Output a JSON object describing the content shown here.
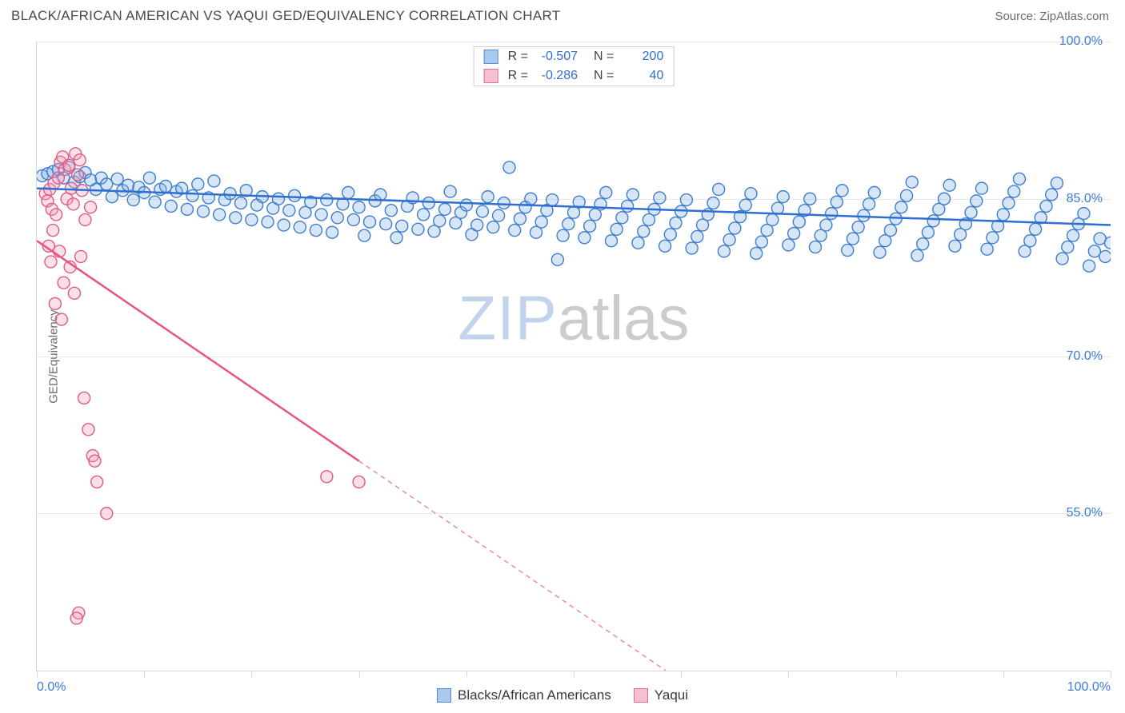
{
  "header": {
    "title": "BLACK/AFRICAN AMERICAN VS YAQUI GED/EQUIVALENCY CORRELATION CHART",
    "source": "Source: ZipAtlas.com"
  },
  "watermark": {
    "part1": "ZIP",
    "part2": "atlas"
  },
  "chart": {
    "type": "scatter",
    "background_color": "#ffffff",
    "border_color": "#d6d6d6",
    "grid_color": "#e8e8e8",
    "ylabel": "GED/Equivalency",
    "ylabel_color": "#6b6b6b",
    "label_fontsize": 15,
    "xlim": [
      0,
      100
    ],
    "ylim": [
      40,
      100
    ],
    "x_start_label": "0.0%",
    "x_end_label": "100.0%",
    "x_tick_positions": [
      0,
      10,
      20,
      30,
      40,
      50,
      60,
      70,
      80,
      90,
      100
    ],
    "y_ticks": [
      {
        "v": 100.0,
        "label": "100.0%"
      },
      {
        "v": 85.0,
        "label": "85.0%"
      },
      {
        "v": 70.0,
        "label": "70.0%"
      },
      {
        "v": 55.0,
        "label": "55.0%"
      }
    ],
    "tick_label_color": "#3b7bd6",
    "tick_fontsize": 16,
    "marker_radius": 7.5,
    "marker_fill_opacity": 0.32,
    "marker_stroke_width": 1.4,
    "trend_line_width": 2.5,
    "trend_dash_pattern": "6,5"
  },
  "legend_top": {
    "r_label": "R =",
    "n_label": "N =",
    "rows": [
      {
        "swatch_fill": "#a9c9ee",
        "swatch_border": "#4f8bd6",
        "r": "-0.507",
        "n": "200"
      },
      {
        "swatch_fill": "#f6c0cf",
        "swatch_border": "#e76a93",
        "r": "-0.286",
        "n": "40"
      }
    ]
  },
  "legend_bottom": {
    "items": [
      {
        "swatch_fill": "#a9c9ee",
        "swatch_border": "#4f8bd6",
        "label": "Blacks/African Americans"
      },
      {
        "swatch_fill": "#f6c0cf",
        "swatch_border": "#e76a93",
        "label": "Yaqui"
      }
    ]
  },
  "series": [
    {
      "name": "Blacks/African Americans",
      "marker_fill": "#7fb0e6",
      "marker_stroke": "#3f7dce",
      "trend_color": "#2f6fd0",
      "trend_y_start": 86.0,
      "trend_y_end": 82.5,
      "trend_solid_until_x": 100,
      "points": [
        [
          0.5,
          87.2
        ],
        [
          1,
          87.4
        ],
        [
          1.5,
          87.6
        ],
        [
          2,
          87.8
        ],
        [
          2.5,
          87.0
        ],
        [
          3,
          88.0
        ],
        [
          3.5,
          86.6
        ],
        [
          4,
          87.1
        ],
        [
          4.5,
          87.5
        ],
        [
          5,
          86.8
        ],
        [
          5.5,
          85.9
        ],
        [
          6,
          87.0
        ],
        [
          6.5,
          86.4
        ],
        [
          7,
          85.2
        ],
        [
          7.5,
          86.9
        ],
        [
          8,
          85.8
        ],
        [
          8.5,
          86.3
        ],
        [
          9,
          84.9
        ],
        [
          9.5,
          86.1
        ],
        [
          10,
          85.6
        ],
        [
          10.5,
          87.0
        ],
        [
          11,
          84.7
        ],
        [
          11.5,
          85.9
        ],
        [
          12,
          86.2
        ],
        [
          12.5,
          84.3
        ],
        [
          13,
          85.7
        ],
        [
          13.5,
          86.0
        ],
        [
          14,
          84.0
        ],
        [
          14.5,
          85.3
        ],
        [
          15,
          86.4
        ],
        [
          15.5,
          83.8
        ],
        [
          16,
          85.1
        ],
        [
          16.5,
          86.7
        ],
        [
          17,
          83.5
        ],
        [
          17.5,
          84.9
        ],
        [
          18,
          85.5
        ],
        [
          18.5,
          83.2
        ],
        [
          19,
          84.6
        ],
        [
          19.5,
          85.8
        ],
        [
          20,
          83.0
        ],
        [
          20.5,
          84.4
        ],
        [
          21,
          85.2
        ],
        [
          21.5,
          82.8
        ],
        [
          22,
          84.1
        ],
        [
          22.5,
          85.0
        ],
        [
          23,
          82.5
        ],
        [
          23.5,
          83.9
        ],
        [
          24,
          85.3
        ],
        [
          24.5,
          82.3
        ],
        [
          25,
          83.7
        ],
        [
          25.5,
          84.7
        ],
        [
          26,
          82.0
        ],
        [
          26.5,
          83.5
        ],
        [
          27,
          84.9
        ],
        [
          27.5,
          81.8
        ],
        [
          28,
          83.2
        ],
        [
          28.5,
          84.5
        ],
        [
          29,
          85.6
        ],
        [
          29.5,
          83.0
        ],
        [
          30,
          84.2
        ],
        [
          30.5,
          81.5
        ],
        [
          31,
          82.8
        ],
        [
          31.5,
          84.8
        ],
        [
          32,
          85.4
        ],
        [
          32.5,
          82.6
        ],
        [
          33,
          83.9
        ],
        [
          33.5,
          81.3
        ],
        [
          34,
          82.4
        ],
        [
          34.5,
          84.3
        ],
        [
          35,
          85.1
        ],
        [
          35.5,
          82.1
        ],
        [
          36,
          83.5
        ],
        [
          36.5,
          84.6
        ],
        [
          37,
          81.9
        ],
        [
          37.5,
          82.9
        ],
        [
          38,
          84.0
        ],
        [
          38.5,
          85.7
        ],
        [
          39,
          82.7
        ],
        [
          39.5,
          83.7
        ],
        [
          40,
          84.4
        ],
        [
          40.5,
          81.6
        ],
        [
          41,
          82.5
        ],
        [
          41.5,
          83.8
        ],
        [
          42,
          85.2
        ],
        [
          42.5,
          82.3
        ],
        [
          43,
          83.4
        ],
        [
          43.5,
          84.6
        ],
        [
          44,
          88.0
        ],
        [
          44.5,
          82.0
        ],
        [
          45,
          83.1
        ],
        [
          45.5,
          84.2
        ],
        [
          46,
          85.0
        ],
        [
          46.5,
          81.8
        ],
        [
          47,
          82.8
        ],
        [
          47.5,
          83.9
        ],
        [
          48,
          84.9
        ],
        [
          48.5,
          79.2
        ],
        [
          49,
          81.5
        ],
        [
          49.5,
          82.6
        ],
        [
          50,
          83.7
        ],
        [
          50.5,
          84.7
        ],
        [
          51,
          81.3
        ],
        [
          51.5,
          82.4
        ],
        [
          52,
          83.5
        ],
        [
          52.5,
          84.5
        ],
        [
          53,
          85.6
        ],
        [
          53.5,
          81.0
        ],
        [
          54,
          82.1
        ],
        [
          54.5,
          83.2
        ],
        [
          55,
          84.3
        ],
        [
          55.5,
          85.4
        ],
        [
          56,
          80.8
        ],
        [
          56.5,
          81.9
        ],
        [
          57,
          83.0
        ],
        [
          57.5,
          84.0
        ],
        [
          58,
          85.1
        ],
        [
          58.5,
          80.5
        ],
        [
          59,
          81.6
        ],
        [
          59.5,
          82.7
        ],
        [
          60,
          83.8
        ],
        [
          60.5,
          84.9
        ],
        [
          61,
          80.3
        ],
        [
          61.5,
          81.4
        ],
        [
          62,
          82.5
        ],
        [
          62.5,
          83.5
        ],
        [
          63,
          84.6
        ],
        [
          63.5,
          85.9
        ],
        [
          64,
          80.0
        ],
        [
          64.5,
          81.1
        ],
        [
          65,
          82.2
        ],
        [
          65.5,
          83.3
        ],
        [
          66,
          84.4
        ],
        [
          66.5,
          85.5
        ],
        [
          67,
          79.8
        ],
        [
          67.5,
          80.9
        ],
        [
          68,
          82.0
        ],
        [
          68.5,
          83.0
        ],
        [
          69,
          84.1
        ],
        [
          69.5,
          85.2
        ],
        [
          70,
          80.6
        ],
        [
          70.5,
          81.7
        ],
        [
          71,
          82.8
        ],
        [
          71.5,
          83.9
        ],
        [
          72,
          85.0
        ],
        [
          72.5,
          80.4
        ],
        [
          73,
          81.5
        ],
        [
          73.5,
          82.5
        ],
        [
          74,
          83.6
        ],
        [
          74.5,
          84.7
        ],
        [
          75,
          85.8
        ],
        [
          75.5,
          80.1
        ],
        [
          76,
          81.2
        ],
        [
          76.5,
          82.3
        ],
        [
          77,
          83.4
        ],
        [
          77.5,
          84.5
        ],
        [
          78,
          85.6
        ],
        [
          78.5,
          79.9
        ],
        [
          79,
          81.0
        ],
        [
          79.5,
          82.0
        ],
        [
          80,
          83.1
        ],
        [
          80.5,
          84.2
        ],
        [
          81,
          85.3
        ],
        [
          81.5,
          86.6
        ],
        [
          82,
          79.6
        ],
        [
          82.5,
          80.7
        ],
        [
          83,
          81.8
        ],
        [
          83.5,
          82.9
        ],
        [
          84,
          84.0
        ],
        [
          84.5,
          85.0
        ],
        [
          85,
          86.3
        ],
        [
          85.5,
          80.5
        ],
        [
          86,
          81.6
        ],
        [
          86.5,
          82.6
        ],
        [
          87,
          83.7
        ],
        [
          87.5,
          84.8
        ],
        [
          88,
          86.0
        ],
        [
          88.5,
          80.2
        ],
        [
          89,
          81.3
        ],
        [
          89.5,
          82.4
        ],
        [
          90,
          83.5
        ],
        [
          90.5,
          84.6
        ],
        [
          91,
          85.7
        ],
        [
          91.5,
          86.9
        ],
        [
          92,
          80.0
        ],
        [
          92.5,
          81.0
        ],
        [
          93,
          82.1
        ],
        [
          93.5,
          83.2
        ],
        [
          94,
          84.3
        ],
        [
          94.5,
          85.4
        ],
        [
          95,
          86.5
        ],
        [
          95.5,
          79.3
        ],
        [
          96,
          80.4
        ],
        [
          96.5,
          81.5
        ],
        [
          97,
          82.6
        ],
        [
          97.5,
          83.6
        ],
        [
          98,
          78.6
        ],
        [
          98.5,
          80.0
        ],
        [
          99,
          81.2
        ],
        [
          99.5,
          79.5
        ],
        [
          100,
          80.8
        ]
      ]
    },
    {
      "name": "Yaqui",
      "marker_fill": "#f29fb8",
      "marker_stroke": "#e15a86",
      "trend_color": "#e65586",
      "trend_y_start": 81.0,
      "trend_y_end": 11.0,
      "trend_solid_until_x": 30,
      "points": [
        [
          0.8,
          85.5
        ],
        [
          1.0,
          84.8
        ],
        [
          1.2,
          85.9
        ],
        [
          1.4,
          84.0
        ],
        [
          1.6,
          86.5
        ],
        [
          1.8,
          83.5
        ],
        [
          2.0,
          87.0
        ],
        [
          2.2,
          88.5
        ],
        [
          2.4,
          89.0
        ],
        [
          2.6,
          87.8
        ],
        [
          2.8,
          85.0
        ],
        [
          3.0,
          88.2
        ],
        [
          3.2,
          86.0
        ],
        [
          3.4,
          84.5
        ],
        [
          3.6,
          89.3
        ],
        [
          3.8,
          87.3
        ],
        [
          4.0,
          88.7
        ],
        [
          4.2,
          85.8
        ],
        [
          4.5,
          83.0
        ],
        [
          5.0,
          84.2
        ],
        [
          1.1,
          80.5
        ],
        [
          1.3,
          79.0
        ],
        [
          1.5,
          82.0
        ],
        [
          2.1,
          80.0
        ],
        [
          2.5,
          77.0
        ],
        [
          3.1,
          78.5
        ],
        [
          3.5,
          76.0
        ],
        [
          4.1,
          79.5
        ],
        [
          1.7,
          75.0
        ],
        [
          2.3,
          73.5
        ],
        [
          4.4,
          66.0
        ],
        [
          4.8,
          63.0
        ],
        [
          5.2,
          60.5
        ],
        [
          5.4,
          60.0
        ],
        [
          5.6,
          58.0
        ],
        [
          6.5,
          55.0
        ],
        [
          3.9,
          45.5
        ],
        [
          3.7,
          45.0
        ],
        [
          27.0,
          58.5
        ],
        [
          30.0,
          58.0
        ]
      ]
    }
  ]
}
